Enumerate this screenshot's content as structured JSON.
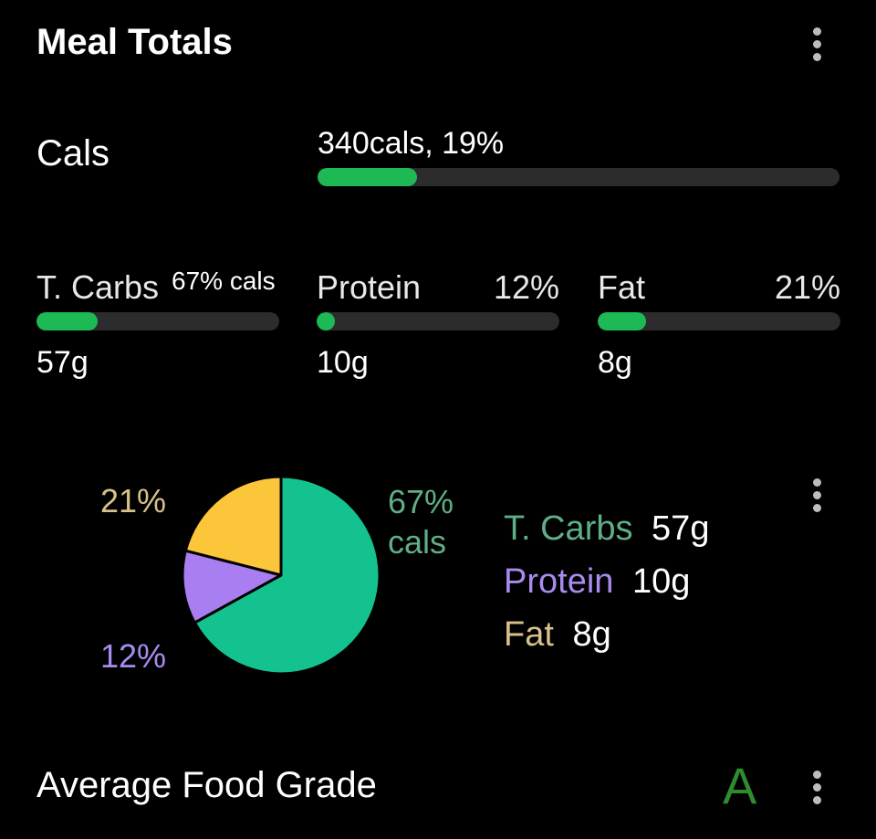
{
  "header": {
    "title": "Meal Totals"
  },
  "cals": {
    "label": "Cals",
    "summary": "340cals, 19%",
    "progress_percent": 19,
    "bar_color": "#1db954"
  },
  "macros": [
    {
      "name": "T. Carbs",
      "pct_label": "67% cals",
      "amount": "57g",
      "progress_percent": 25
    },
    {
      "name": "Protein",
      "pct_label": "12%",
      "amount": "10g",
      "progress_percent": 6
    },
    {
      "name": "Fat",
      "pct_label": "21%",
      "amount": "8g",
      "progress_percent": 20
    }
  ],
  "breakdown": {
    "pie_labels": {
      "carbs_line1": "67%",
      "carbs_line2": "cals",
      "protein": "12%",
      "fat": "21%"
    },
    "legend": [
      {
        "name": "T. Carbs",
        "amount": "57g",
        "color": "#5fae86"
      },
      {
        "name": "Protein",
        "amount": "10g",
        "color": "#a98bf0"
      },
      {
        "name": "Fat",
        "amount": "8g",
        "color": "#d8c18a"
      }
    ]
  },
  "chart_data": {
    "type": "pie",
    "categories": [
      "T. Carbs",
      "Protein",
      "Fat"
    ],
    "values": [
      67,
      12,
      21
    ],
    "colors": [
      "#14c28f",
      "#a97ef0",
      "#fcc63a"
    ]
  },
  "grade": {
    "label": "Average Food Grade",
    "value": "A",
    "color": "#2e8b2e"
  },
  "colors": {
    "accent_green": "#1db954",
    "background": "#000000",
    "track": "#2c2c2e"
  }
}
